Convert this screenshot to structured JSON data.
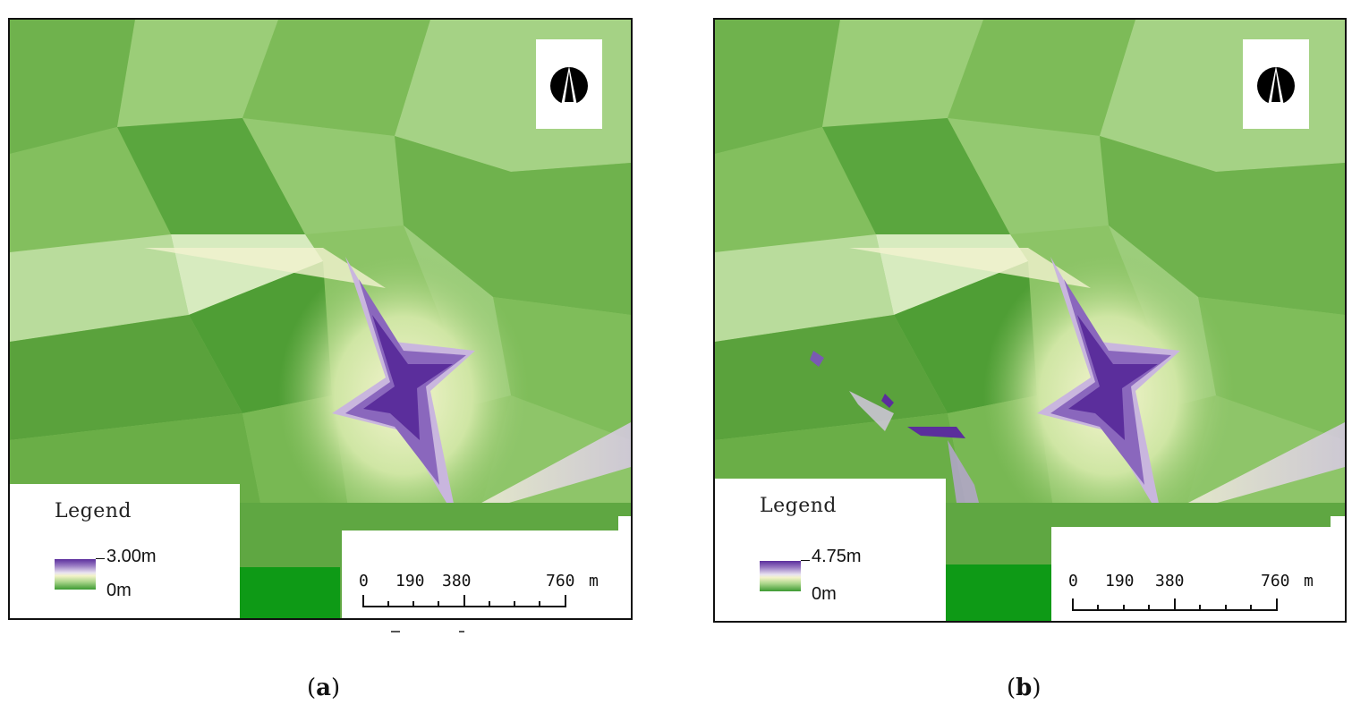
{
  "panels": [
    {
      "id": "a",
      "caption_open": "(",
      "caption_letter": "a",
      "caption_close": ")",
      "legend": {
        "title": "Legend",
        "max_label": "3.00m",
        "min_label": "0m"
      },
      "scale_bar": {
        "ticks": [
          "0",
          "190",
          "380",
          "760"
        ],
        "unit": "m"
      },
      "north_arrow_icon": "north-arrow-icon",
      "colors": {
        "low": "#3d9a32",
        "mid": "#f3f3c8",
        "high": "#5b2e9c",
        "scale_fill": "#0e9a16"
      }
    },
    {
      "id": "b",
      "caption_open": "(",
      "caption_letter": "b",
      "caption_close": ")",
      "legend": {
        "title": "Legend",
        "max_label": "4.75m",
        "min_label": "0m"
      },
      "scale_bar": {
        "ticks": [
          "0",
          "190",
          "380",
          "760"
        ],
        "unit": "m"
      },
      "north_arrow_icon": "north-arrow-icon",
      "colors": {
        "low": "#3d9a32",
        "mid": "#f3f3c8",
        "high": "#5b2e9c",
        "scale_fill": "#0e9a16"
      }
    }
  ]
}
